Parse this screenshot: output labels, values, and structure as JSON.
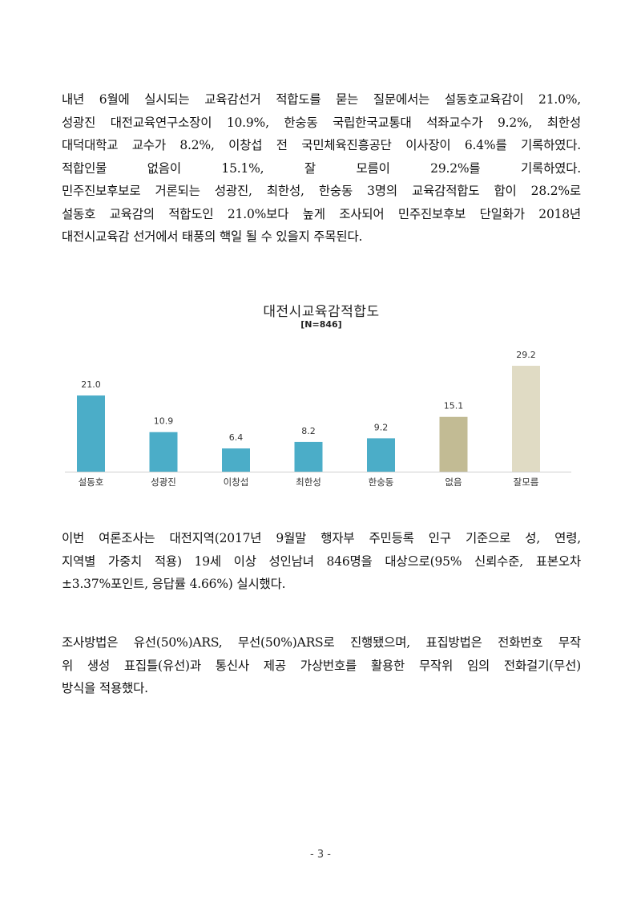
{
  "paragraphs": {
    "p1": [
      " 내년 6월에 실시되는 교육감선거 적합도를 묻는 질문에서는 설동호교육감이 21.0%,",
      "성광진 대전교육연구소장이 10.9%, 한숭동 국립한국교통대 석좌교수가 9.2%, 최한성",
      "대덕대학교 교수가 8.2%, 이창섭 전 국민체육진흥공단 이사장이 6.4%를 기록하였다.",
      "적합인물 없음이 15.1%, 잘 모름이 29.2%를 기록하였다.",
      "민주진보후보로 거론되는 성광진, 최한성, 한숭동 3명의 교육감적합도 합이 28.2%로",
      "설동호 교육감의 적합도인 21.0%보다 높게 조사되어 민주진보후보 단일화가 2018년",
      "대전시교육감 선거에서 태풍의 핵일 될 수 있을지 주목된다."
    ],
    "p2": [
      "이번 여론조사는 대전지역(2017년 9월말 행자부 주민등록 인구 기준으로 성, 연령,",
      "지역별 가중치 적용) 19세 이상 성인남녀 846명을 대상으로(95% 신뢰수준, 표본오차",
      "±3.37%포인트, 응답률 4.66%) 실시했다."
    ],
    "p3": [
      "조사방법은 유선(50%)ARS, 무선(50%)ARS로 진행됐으며, 표집방법은 전화번호 무작",
      "위 생성 표집틀(유선)과 통신사 제공 가상번호를 활용한 무작위 임의 전화걸기(무선)",
      "방식을 적용했다."
    ]
  },
  "chart_data": {
    "type": "bar",
    "title": "대전시교육감적합도",
    "subtitle": "[N=846]",
    "categories": [
      "설동호",
      "성광진",
      "이창섭",
      "최한성",
      "한숭동",
      "없음",
      "잘모름"
    ],
    "values": [
      21.0,
      10.9,
      6.4,
      8.2,
      9.2,
      15.1,
      29.2
    ],
    "value_labels": [
      "21.0",
      "10.9",
      "6.4",
      "8.2",
      "9.2",
      "15.1",
      "29.2"
    ],
    "colors": [
      "#4badc8",
      "#4badc8",
      "#4badc8",
      "#4badc8",
      "#4badc8",
      "#c2bb94",
      "#e0dbc4"
    ],
    "ylim": [
      0,
      30
    ],
    "grid": false,
    "legend": "none"
  },
  "footer": {
    "page_number": "- 3 -"
  }
}
